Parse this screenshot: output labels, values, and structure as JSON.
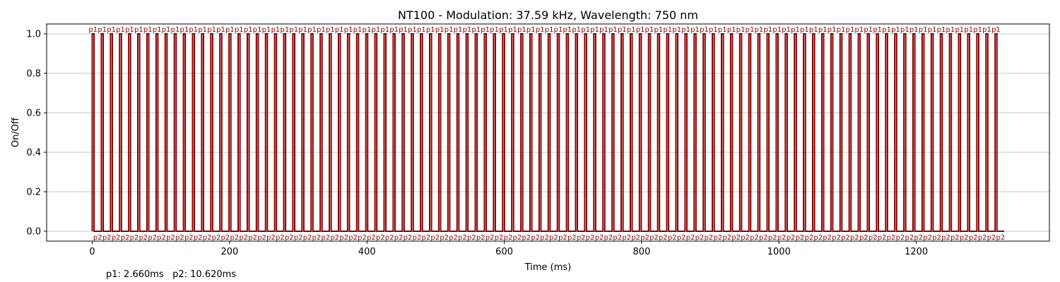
{
  "chart_data": {
    "type": "line",
    "title": "NT100 - Modulation: 37.59 kHz, Wavelength: 750 nm",
    "xlabel": "Time (ms)",
    "ylabel": "On/Off",
    "xlim": [
      -66.4,
      1393.8
    ],
    "ylim": [
      -0.05,
      1.05
    ],
    "xticks": [
      0,
      200,
      400,
      600,
      800,
      1000,
      1200
    ],
    "yticks": [
      0.0,
      0.2,
      0.4,
      0.6,
      0.8,
      1.0
    ],
    "ytick_labels": [
      "0.0",
      "0.2",
      "0.4",
      "0.6",
      "0.8",
      "1.0"
    ],
    "grid": "y",
    "series": [
      {
        "pulse_on_ms": 2.66,
        "pulse_off_ms": 10.62,
        "pulse_count": 100,
        "start_ms": 0,
        "color": "#8b0000",
        "on_label": "p1",
        "off_label": "p2"
      }
    ]
  },
  "footnote": {
    "p1": "p1: 2.660ms",
    "p2": "p2: 10.620ms"
  }
}
